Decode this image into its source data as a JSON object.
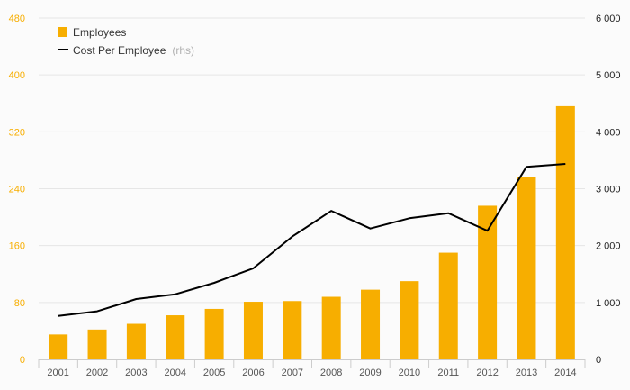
{
  "chart_data": {
    "type": "bar",
    "categories": [
      "2001",
      "2002",
      "2003",
      "2004",
      "2005",
      "2006",
      "2007",
      "2008",
      "2009",
      "2010",
      "2011",
      "2012",
      "2013",
      "2014"
    ],
    "series": [
      {
        "name": "Employees",
        "type": "bar",
        "axis": "left",
        "color": "#f7ae00",
        "values": [
          35,
          42,
          50,
          62,
          71,
          81,
          82,
          88,
          98,
          110,
          150,
          216,
          257,
          356
        ]
      },
      {
        "name": "Cost Per Employee",
        "name_suffix": "(rhs)",
        "type": "line",
        "axis": "right",
        "color": "#000000",
        "values": [
          765,
          845,
          1060,
          1145,
          1345,
          1600,
          2160,
          2610,
          2300,
          2480,
          2570,
          2260,
          3385,
          3435
        ]
      }
    ],
    "y_left": {
      "ylim": [
        0,
        480
      ],
      "ticks": [
        "0",
        "80",
        "160",
        "240",
        "320",
        "400",
        "480"
      ],
      "color": "#f7ae00"
    },
    "y_right": {
      "ylim": [
        0,
        6000
      ],
      "ticks": [
        "0",
        "1 000",
        "2 000",
        "3 000",
        "4 000",
        "5 000",
        "6 000"
      ]
    },
    "grid": true,
    "legend_position": "top-left"
  }
}
